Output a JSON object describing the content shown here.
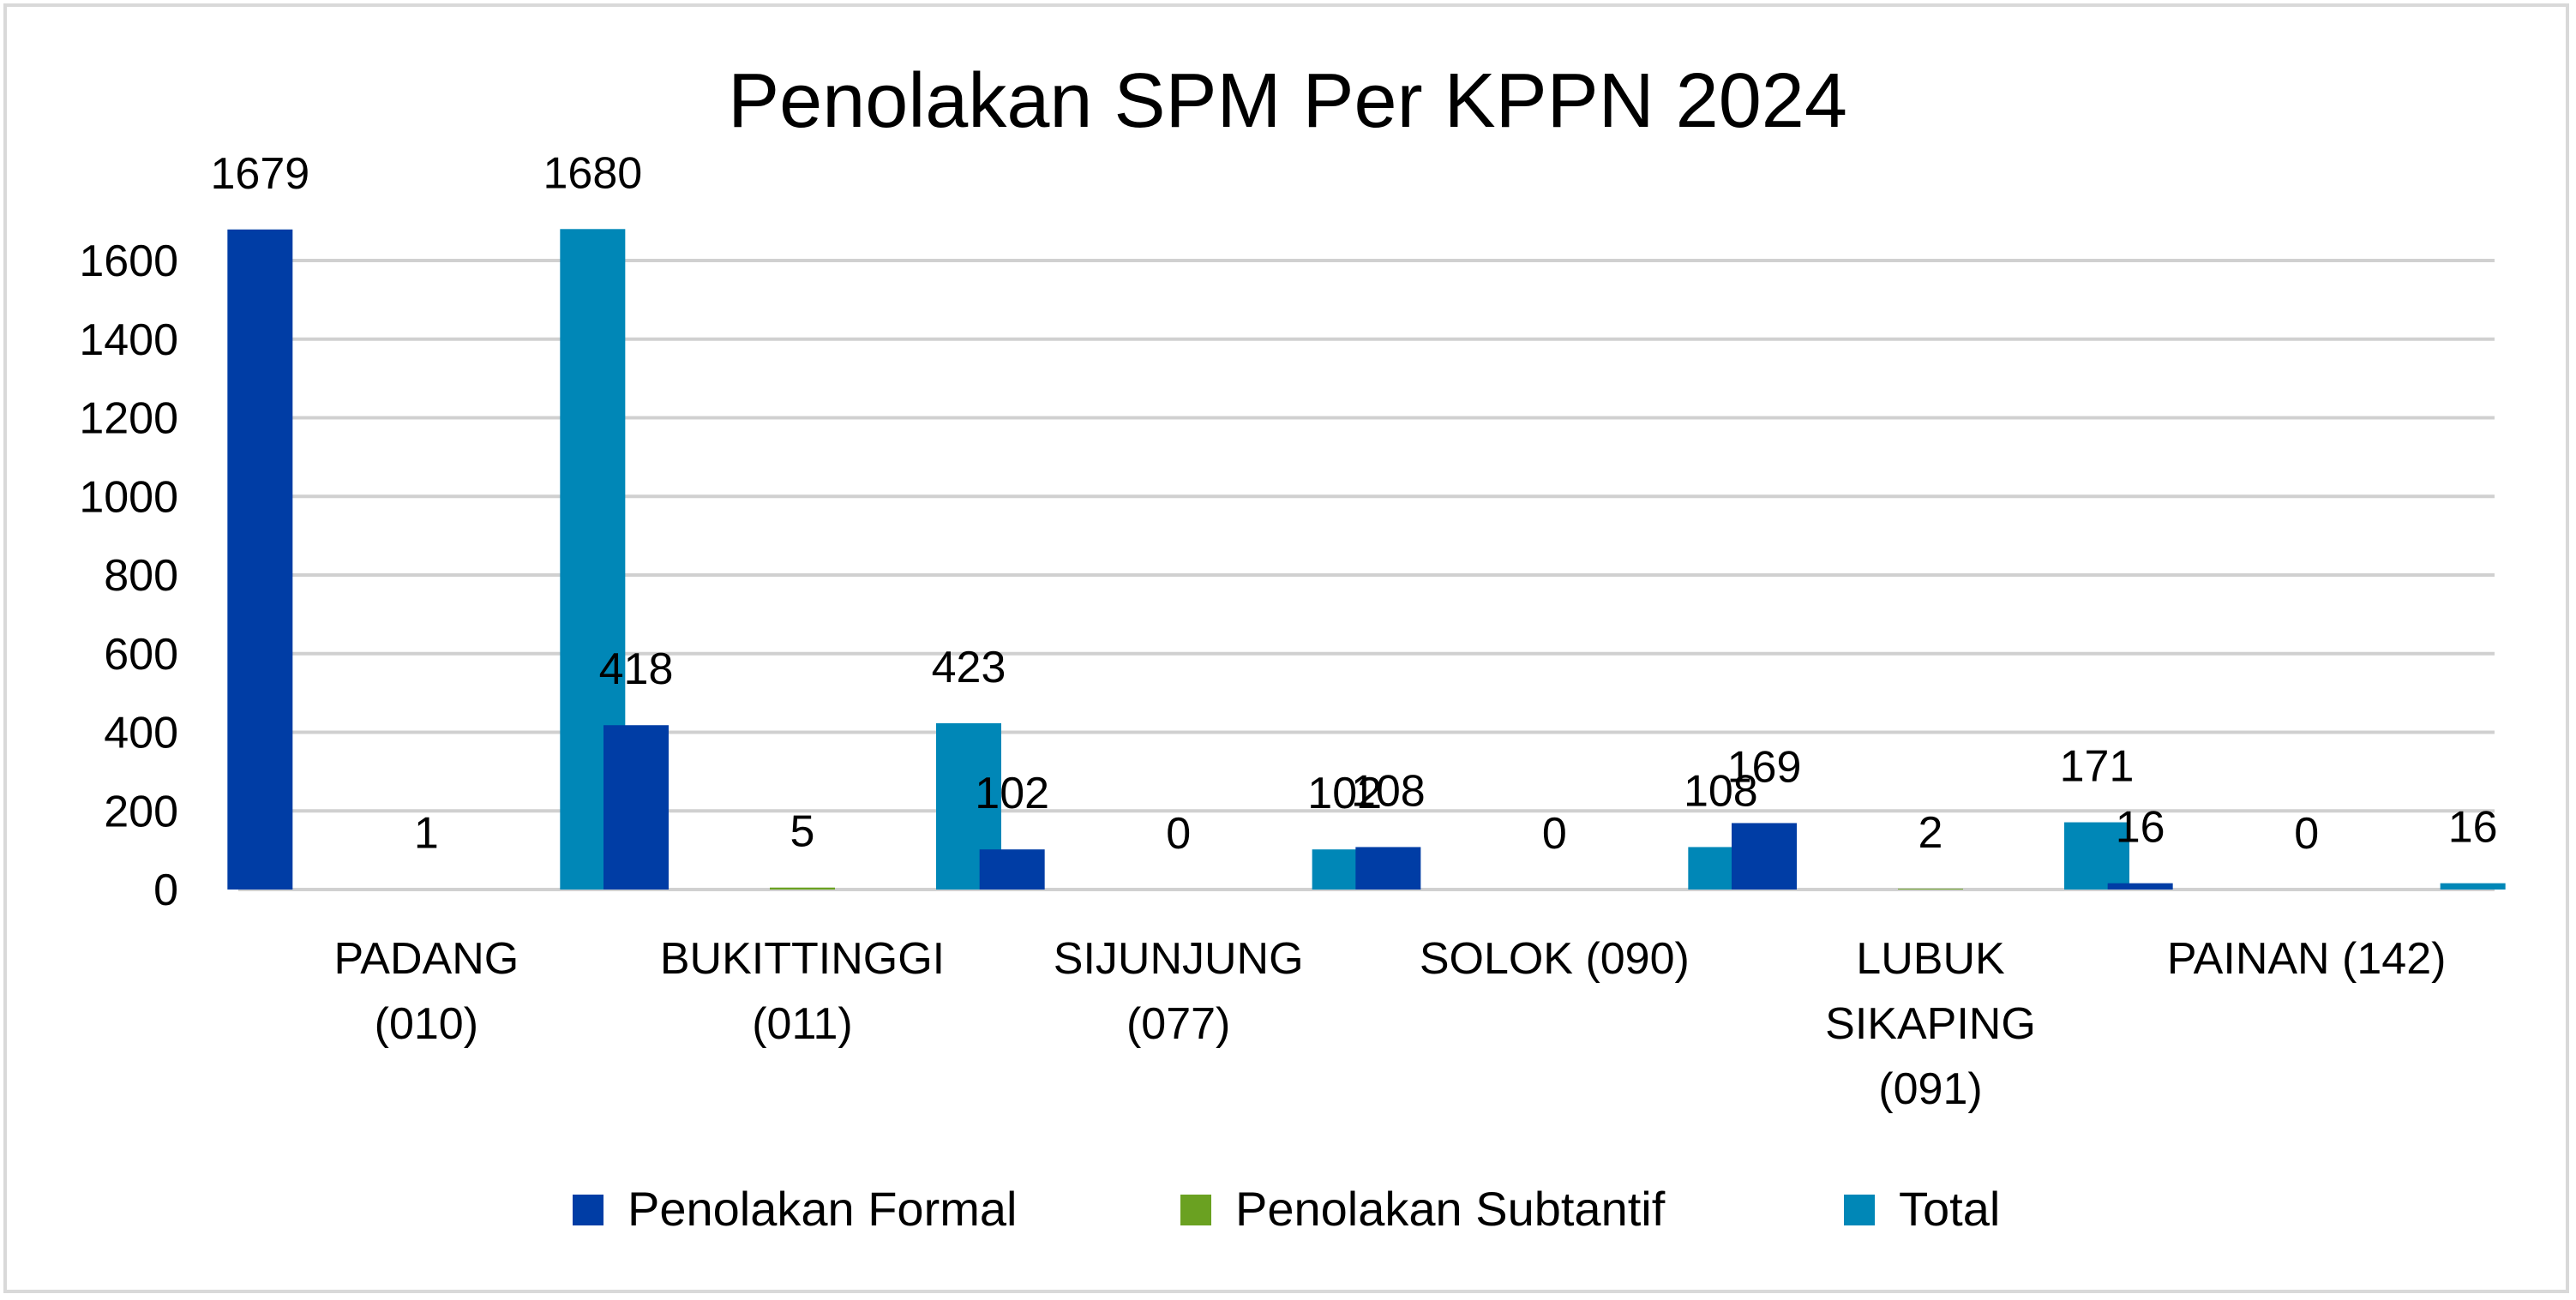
{
  "chart_data": {
    "type": "bar",
    "title": "Penolakan SPM Per KPPN 2024",
    "xlabel": "",
    "ylabel": "",
    "ylim": [
      0,
      1600
    ],
    "yticks": [
      0,
      200,
      400,
      600,
      800,
      1000,
      1200,
      1400,
      1600
    ],
    "grid": true,
    "legend_position": "bottom",
    "categories": [
      [
        "PADANG",
        "(010)"
      ],
      [
        "BUKITTINGGI",
        "(011)"
      ],
      [
        "SIJUNJUNG",
        "(077)"
      ],
      [
        "SOLOK (090)"
      ],
      [
        "LUBUK",
        "SIKAPING",
        "(091)"
      ],
      [
        "PAINAN (142)"
      ]
    ],
    "series": [
      {
        "name": "Penolakan Formal",
        "color": "#003da5",
        "values": [
          1679,
          418,
          102,
          108,
          169,
          16
        ]
      },
      {
        "name": "Penolakan Subtantif",
        "color": "#6aa121",
        "values": [
          1,
          5,
          0,
          0,
          2,
          0
        ]
      },
      {
        "name": "Total",
        "color": "#0087b7",
        "values": [
          1680,
          423,
          102,
          108,
          171,
          16
        ]
      }
    ]
  }
}
